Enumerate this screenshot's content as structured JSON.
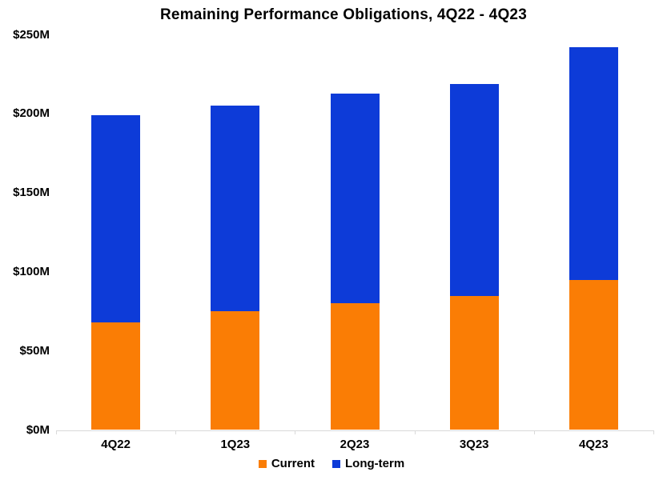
{
  "chart_data": {
    "type": "bar",
    "stacked": true,
    "title": "Remaining Performance Obligations, 4Q22 - 4Q23",
    "categories": [
      "4Q22",
      "1Q23",
      "2Q23",
      "3Q23",
      "4Q23"
    ],
    "series": [
      {
        "name": "Current",
        "color": "#FA7D05",
        "values": [
          68,
          75,
          80,
          85,
          95
        ]
      },
      {
        "name": "Long-term",
        "color": "#0D3BD8",
        "values": [
          131,
          130,
          133,
          134,
          147
        ]
      }
    ],
    "stacked_totals": [
      199,
      205,
      213,
      219,
      242
    ],
    "xlabel": "",
    "ylabel": "",
    "ylim": [
      0,
      250
    ],
    "y_ticks": [
      {
        "value": 0,
        "label": "$0M"
      },
      {
        "value": 50,
        "label": "$50M"
      },
      {
        "value": 100,
        "label": "$100M"
      },
      {
        "value": 150,
        "label": "$150M"
      },
      {
        "value": 200,
        "label": "$200M"
      },
      {
        "value": 250,
        "label": "$250M"
      }
    ],
    "grid": false,
    "legend_position": "bottom-center",
    "axis_color": "#D9D9D9",
    "text_color": "#000000",
    "background": "#FFFFFF"
  }
}
